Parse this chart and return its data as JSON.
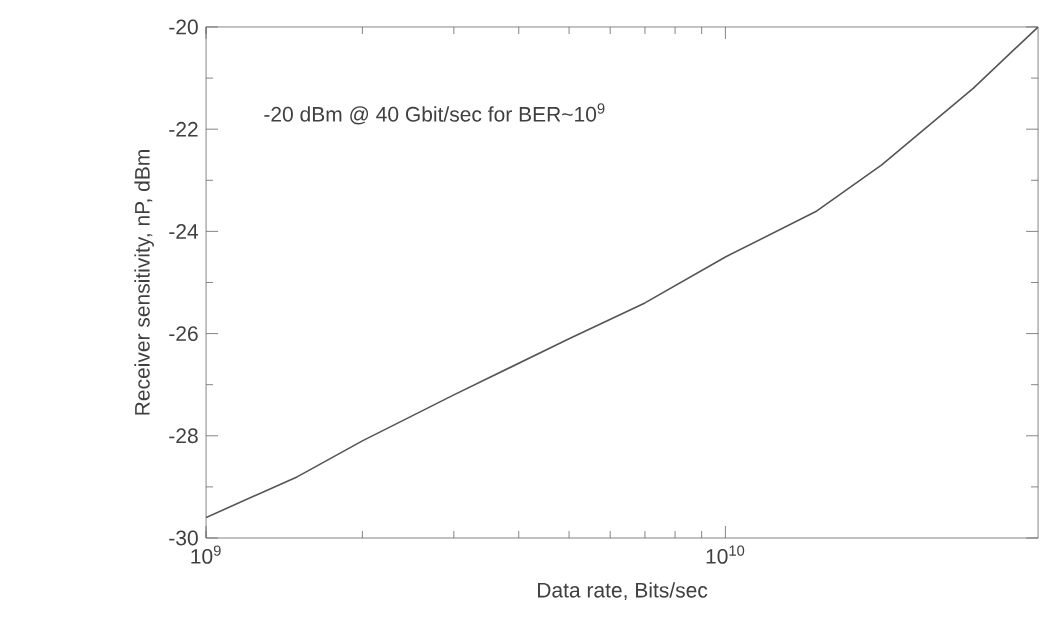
{
  "chart_data": {
    "type": "line",
    "xlabel": "Data rate, Bits/sec",
    "ylabel": "Receiver sensitivity, nP, dBm",
    "annotations": [
      "-20 dBm @ 40 Gbit/sec for BER~10$^{9}$"
    ],
    "x": [
      1000000000.0,
      1500000000.0,
      2000000000.0,
      3000000000.0,
      5000000000.0,
      7000000000.0,
      10000000000.0,
      15000000000.0,
      20000000000.0,
      30000000000.0,
      40000000000.0
    ],
    "series": [
      {
        "color": "#555555",
        "values": [
          -29.6,
          -28.8,
          -28.1,
          -27.2,
          -26.1,
          -25.4,
          -24.5,
          -23.6,
          -22.7,
          -21.2,
          -20
        ]
      }
    ],
    "log": "x",
    "xlim": [
      1000000000.0,
      40000000000.0
    ],
    "ylim": [
      -30,
      -20
    ],
    "xticks": [
      {
        "value": 1000000000.0,
        "label": "10$^{9}$"
      },
      {
        "value": 10000000000.0,
        "label": "10$^{10}$"
      }
    ],
    "yticks": [
      -30,
      -28,
      -26,
      -24,
      -22,
      -20
    ]
  }
}
